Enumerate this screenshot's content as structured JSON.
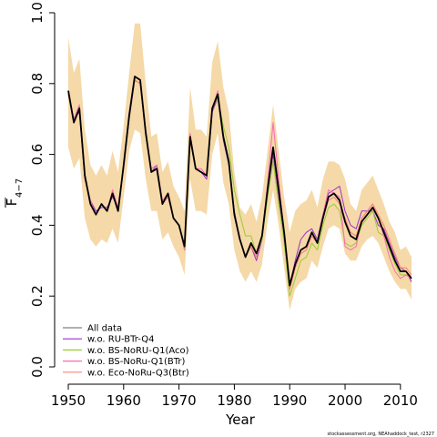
{
  "chart_data": {
    "type": "line",
    "xlabel": "Year",
    "ylabel_main": "F",
    "ylabel_sub": "4−7",
    "credit": "stockassessment.org, NEAhaddock_test, r2327",
    "xlim": [
      1950,
      2012
    ],
    "ylim": [
      0,
      1
    ],
    "xticks": [
      1950,
      1960,
      1970,
      1980,
      1990,
      2000,
      2010
    ],
    "yticks": [
      0.0,
      0.2,
      0.4,
      0.6,
      0.8,
      1.0
    ],
    "ytick_labels": [
      "0.0",
      "0.2",
      "0.4",
      "0.6",
      "0.8",
      "1.0"
    ],
    "legend_position": "bottom-left",
    "x": [
      1950,
      1951,
      1952,
      1953,
      1954,
      1955,
      1956,
      1957,
      1958,
      1959,
      1960,
      1961,
      1962,
      1963,
      1964,
      1965,
      1966,
      1967,
      1968,
      1969,
      1970,
      1971,
      1972,
      1973,
      1974,
      1975,
      1976,
      1977,
      1978,
      1979,
      1980,
      1981,
      1982,
      1983,
      1984,
      1985,
      1986,
      1987,
      1988,
      1989,
      1990,
      1991,
      1992,
      1993,
      1994,
      1995,
      1996,
      1997,
      1998,
      1999,
      2000,
      2001,
      2002,
      2003,
      2004,
      2005,
      2006,
      2007,
      2008,
      2009,
      2010,
      2011,
      2012
    ],
    "band": {
      "color": "#f5d9a8",
      "upper": [
        0.93,
        0.83,
        0.87,
        0.67,
        0.57,
        0.54,
        0.57,
        0.54,
        0.61,
        0.55,
        0.68,
        0.83,
        0.97,
        0.97,
        0.8,
        0.65,
        0.66,
        0.55,
        0.58,
        0.51,
        0.48,
        0.44,
        0.79,
        0.67,
        0.67,
        0.65,
        0.86,
        0.92,
        0.79,
        0.72,
        0.55,
        0.45,
        0.43,
        0.46,
        0.41,
        0.48,
        0.61,
        0.74,
        0.61,
        0.48,
        0.38,
        0.44,
        0.46,
        0.47,
        0.5,
        0.45,
        0.53,
        0.58,
        0.58,
        0.57,
        0.53,
        0.46,
        0.44,
        0.5,
        0.52,
        0.54,
        0.5,
        0.46,
        0.41,
        0.38,
        0.33,
        0.34,
        0.31
      ],
      "lower": [
        0.62,
        0.56,
        0.59,
        0.42,
        0.36,
        0.34,
        0.36,
        0.35,
        0.39,
        0.35,
        0.48,
        0.61,
        0.67,
        0.66,
        0.53,
        0.44,
        0.44,
        0.36,
        0.38,
        0.34,
        0.31,
        0.26,
        0.53,
        0.44,
        0.44,
        0.43,
        0.6,
        0.66,
        0.52,
        0.46,
        0.33,
        0.27,
        0.24,
        0.27,
        0.24,
        0.29,
        0.41,
        0.5,
        0.4,
        0.28,
        0.16,
        0.22,
        0.24,
        0.25,
        0.3,
        0.28,
        0.34,
        0.39,
        0.4,
        0.39,
        0.32,
        0.3,
        0.3,
        0.34,
        0.36,
        0.37,
        0.35,
        0.31,
        0.27,
        0.24,
        0.22,
        0.22,
        0.19
      ]
    },
    "series": [
      {
        "name": "All data",
        "color": "#000000",
        "legend_color": "#808080",
        "width": 1.8,
        "values": [
          0.78,
          0.69,
          0.73,
          0.54,
          0.46,
          0.43,
          0.46,
          0.44,
          0.49,
          0.44,
          0.57,
          0.71,
          0.82,
          0.81,
          0.66,
          0.55,
          0.56,
          0.46,
          0.49,
          0.42,
          0.4,
          0.34,
          0.65,
          0.56,
          0.55,
          0.54,
          0.73,
          0.77,
          0.65,
          0.58,
          0.43,
          0.36,
          0.31,
          0.35,
          0.32,
          0.37,
          0.5,
          0.62,
          0.5,
          0.38,
          0.23,
          0.29,
          0.33,
          0.34,
          0.38,
          0.35,
          0.42,
          0.48,
          0.49,
          0.47,
          0.41,
          0.37,
          0.36,
          0.41,
          0.43,
          0.45,
          0.42,
          0.38,
          0.34,
          0.3,
          0.27,
          0.27,
          0.25
        ]
      },
      {
        "name": "w.o. RU-BTr-Q4",
        "color": "#9932cc",
        "legend_color": "#9932cc",
        "width": 1,
        "values": [
          0.77,
          0.7,
          0.72,
          0.53,
          0.47,
          0.44,
          0.45,
          0.45,
          0.48,
          0.45,
          0.56,
          0.7,
          0.81,
          0.8,
          0.67,
          0.55,
          0.57,
          0.46,
          0.48,
          0.42,
          0.4,
          0.33,
          0.64,
          0.56,
          0.55,
          0.53,
          0.72,
          0.76,
          0.64,
          0.57,
          0.44,
          0.36,
          0.31,
          0.34,
          0.3,
          0.36,
          0.49,
          0.6,
          0.48,
          0.37,
          0.23,
          0.3,
          0.36,
          0.38,
          0.39,
          0.36,
          0.43,
          0.49,
          0.5,
          0.51,
          0.44,
          0.4,
          0.39,
          0.44,
          0.44,
          0.44,
          0.4,
          0.39,
          0.35,
          0.31,
          0.28,
          0.27,
          0.24
        ]
      },
      {
        "name": "w.o. BS-NoRU-Q1(Aco)",
        "color": "#9acd32",
        "legend_color": "#9acd32",
        "width": 1,
        "values": [
          0.77,
          0.69,
          0.73,
          0.54,
          0.46,
          0.43,
          0.46,
          0.44,
          0.49,
          0.44,
          0.57,
          0.71,
          0.81,
          0.8,
          0.66,
          0.55,
          0.56,
          0.46,
          0.48,
          0.42,
          0.4,
          0.34,
          0.65,
          0.56,
          0.55,
          0.54,
          0.73,
          0.76,
          0.68,
          0.62,
          0.5,
          0.43,
          0.37,
          0.37,
          0.32,
          0.36,
          0.48,
          0.58,
          0.46,
          0.35,
          0.2,
          0.25,
          0.3,
          0.31,
          0.35,
          0.33,
          0.4,
          0.45,
          0.46,
          0.44,
          0.35,
          0.34,
          0.35,
          0.4,
          0.42,
          0.44,
          0.38,
          0.37,
          0.33,
          0.29,
          0.26,
          0.26,
          0.25
        ]
      },
      {
        "name": "w.o. BS-NoRu-Q1(BTr)",
        "color": "#ff69b4",
        "legend_color": "#ff69b4",
        "width": 1,
        "values": [
          0.78,
          0.7,
          0.74,
          0.54,
          0.47,
          0.43,
          0.46,
          0.44,
          0.5,
          0.45,
          0.57,
          0.71,
          0.82,
          0.81,
          0.66,
          0.56,
          0.57,
          0.47,
          0.49,
          0.42,
          0.4,
          0.34,
          0.66,
          0.56,
          0.56,
          0.54,
          0.73,
          0.78,
          0.65,
          0.58,
          0.43,
          0.36,
          0.31,
          0.35,
          0.32,
          0.37,
          0.52,
          0.69,
          0.53,
          0.38,
          0.22,
          0.28,
          0.32,
          0.33,
          0.37,
          0.35,
          0.43,
          0.5,
          0.49,
          0.48,
          0.34,
          0.33,
          0.34,
          0.42,
          0.44,
          0.46,
          0.42,
          0.37,
          0.31,
          0.27,
          0.25,
          0.26,
          0.25
        ]
      },
      {
        "name": "w.o. Eco-NoRu-Q3(Btr)",
        "color": "#fa8072",
        "legend_color": "#fa8072",
        "width": 1,
        "values": [
          0.77,
          0.69,
          0.73,
          0.54,
          0.46,
          0.43,
          0.46,
          0.44,
          0.49,
          0.44,
          0.57,
          0.71,
          0.81,
          0.8,
          0.66,
          0.55,
          0.56,
          0.46,
          0.48,
          0.42,
          0.4,
          0.33,
          0.65,
          0.56,
          0.55,
          0.54,
          0.73,
          0.77,
          0.65,
          0.58,
          0.43,
          0.36,
          0.31,
          0.34,
          0.31,
          0.37,
          0.5,
          0.61,
          0.49,
          0.37,
          0.22,
          0.28,
          0.32,
          0.33,
          0.37,
          0.35,
          0.42,
          0.47,
          0.48,
          0.46,
          0.42,
          0.38,
          0.37,
          0.42,
          0.44,
          0.46,
          0.43,
          0.4,
          0.36,
          0.32,
          0.28,
          0.28,
          0.26
        ]
      }
    ]
  }
}
